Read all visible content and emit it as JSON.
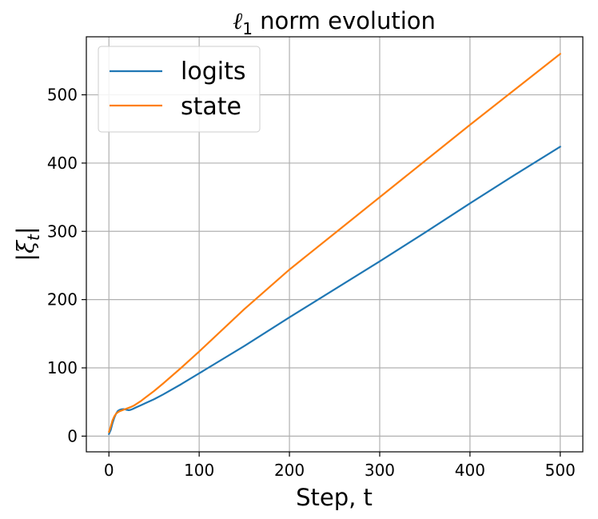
{
  "chart_data": {
    "type": "line",
    "title_glyph": "ℓ",
    "title_sub": "1",
    "title_rest": " norm evolution",
    "xlabel": "Step, t",
    "ylabel_glyph": "ξ",
    "ylabel_sub": "t",
    "xlim": [
      -25,
      525
    ],
    "ylim": [
      -23,
      585
    ],
    "xticks": [
      0,
      100,
      200,
      300,
      400,
      500
    ],
    "yticks": [
      0,
      100,
      200,
      300,
      400,
      500
    ],
    "grid": true,
    "legend_position": "top-left",
    "series": [
      {
        "name": "logits",
        "color": "#1f77b4",
        "points": [
          [
            0,
            3
          ],
          [
            2,
            9
          ],
          [
            4,
            19
          ],
          [
            6,
            27
          ],
          [
            8,
            33
          ],
          [
            10,
            37
          ],
          [
            12,
            38.5
          ],
          [
            14,
            39.3
          ],
          [
            16,
            39.5
          ],
          [
            18,
            39.2
          ],
          [
            20,
            38.5
          ],
          [
            22,
            38
          ],
          [
            24,
            38.5
          ],
          [
            26,
            39.5
          ],
          [
            30,
            42
          ],
          [
            35,
            45
          ],
          [
            40,
            48
          ],
          [
            50,
            54
          ],
          [
            60,
            61
          ],
          [
            80,
            76
          ],
          [
            100,
            92
          ],
          [
            150,
            132
          ],
          [
            200,
            174
          ],
          [
            250,
            215
          ],
          [
            300,
            256
          ],
          [
            350,
            298
          ],
          [
            400,
            341
          ],
          [
            450,
            383
          ],
          [
            500,
            424
          ]
        ]
      },
      {
        "name": "state",
        "color": "#ff7f0e",
        "points": [
          [
            0,
            6
          ],
          [
            2,
            14
          ],
          [
            4,
            23
          ],
          [
            6,
            29
          ],
          [
            8,
            33
          ],
          [
            10,
            35
          ],
          [
            12,
            36.5
          ],
          [
            14,
            37.5
          ],
          [
            16,
            38.5
          ],
          [
            18,
            39.5
          ],
          [
            20,
            40.5
          ],
          [
            24,
            42.5
          ],
          [
            28,
            45
          ],
          [
            35,
            51
          ],
          [
            40,
            56
          ],
          [
            50,
            66
          ],
          [
            60,
            77
          ],
          [
            80,
            100
          ],
          [
            100,
            124
          ],
          [
            150,
            186
          ],
          [
            200,
            244
          ],
          [
            250,
            297
          ],
          [
            300,
            350
          ],
          [
            350,
            403
          ],
          [
            400,
            456
          ],
          [
            450,
            508
          ],
          [
            500,
            560
          ]
        ]
      }
    ]
  }
}
